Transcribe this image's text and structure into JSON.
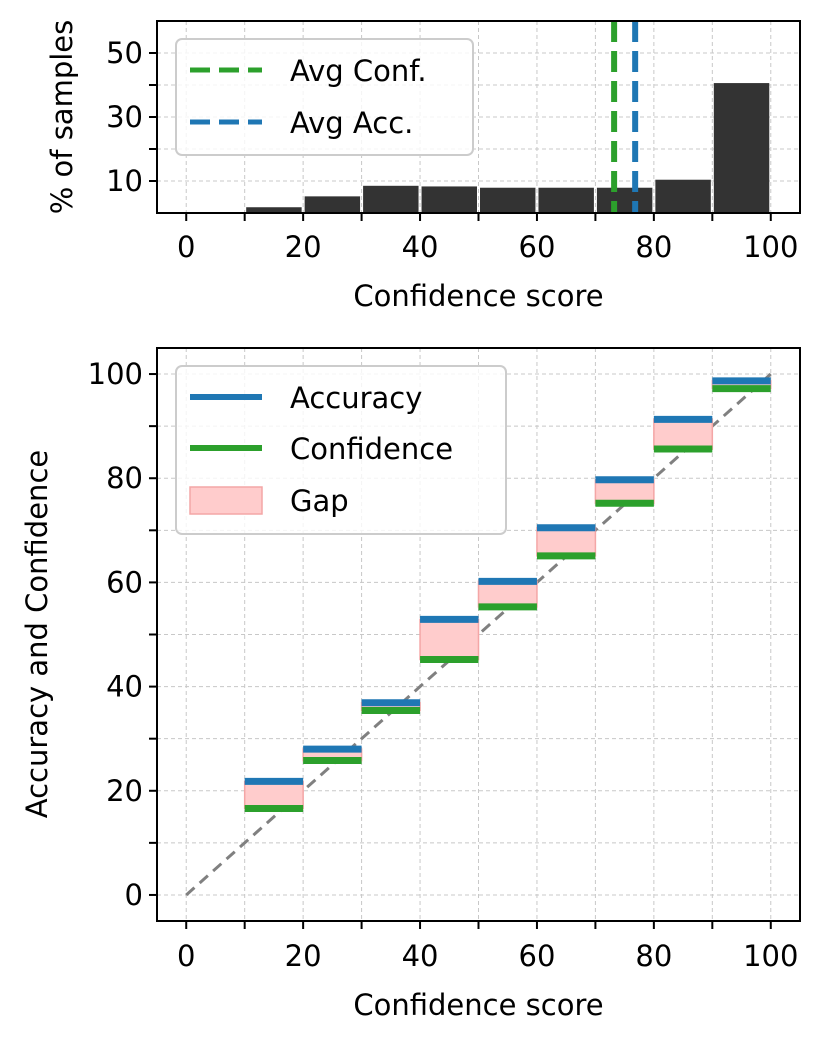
{
  "chart_data": [
    {
      "type": "bar",
      "title": "",
      "xlabel": "Confidence score",
      "ylabel": "% of samples",
      "xlim": [
        -5,
        105
      ],
      "ylim": [
        0,
        60
      ],
      "xticks": [
        0,
        20,
        40,
        60,
        80,
        100
      ],
      "yticks": [
        10,
        30,
        50
      ],
      "grid": true,
      "bin_edges": [
        0,
        10,
        20,
        30,
        40,
        50,
        60,
        70,
        80,
        90,
        100
      ],
      "values": [
        0,
        1.8,
        5.2,
        8.5,
        8.3,
        7.9,
        7.9,
        7.9,
        10.4,
        40.6
      ],
      "bar_color": "#333333",
      "lines": [
        {
          "label": "Avg Conf.",
          "x": 73.2,
          "color": "#2ca02c"
        },
        {
          "label": "Avg Acc.",
          "x": 76.8,
          "color": "#1f77b4"
        }
      ],
      "legend_position": "top-left"
    },
    {
      "type": "reliability",
      "title": "",
      "xlabel": "Confidence score",
      "ylabel": "Accuracy and Confidence",
      "xlim": [
        -5,
        105
      ],
      "ylim": [
        -5,
        105
      ],
      "xticks": [
        0,
        20,
        40,
        60,
        80,
        100
      ],
      "yticks": [
        0,
        20,
        40,
        60,
        80,
        100
      ],
      "grid": true,
      "bins": [
        {
          "start": 10,
          "end": 20,
          "accuracy": 21.8,
          "confidence": 16.6
        },
        {
          "start": 20,
          "end": 30,
          "accuracy": 28.0,
          "confidence": 25.8
        },
        {
          "start": 30,
          "end": 40,
          "accuracy": 36.9,
          "confidence": 35.4
        },
        {
          "start": 40,
          "end": 50,
          "accuracy": 52.9,
          "confidence": 45.2
        },
        {
          "start": 50,
          "end": 60,
          "accuracy": 60.2,
          "confidence": 55.3
        },
        {
          "start": 60,
          "end": 70,
          "accuracy": 70.5,
          "confidence": 65.1
        },
        {
          "start": 70,
          "end": 80,
          "accuracy": 79.7,
          "confidence": 75.2
        },
        {
          "start": 80,
          "end": 90,
          "accuracy": 91.3,
          "confidence": 85.6
        },
        {
          "start": 90,
          "end": 100,
          "accuracy": 98.7,
          "confidence": 97.2
        }
      ],
      "diagonal": true,
      "colors": {
        "accuracy": "#1f77b4",
        "confidence": "#2ca02c",
        "gap": "#ffcccc",
        "gap_edge": "#f4a6a6",
        "diagonal": "#808080"
      },
      "legend": [
        "Accuracy",
        "Confidence",
        "Gap"
      ],
      "legend_position": "top-left"
    }
  ]
}
